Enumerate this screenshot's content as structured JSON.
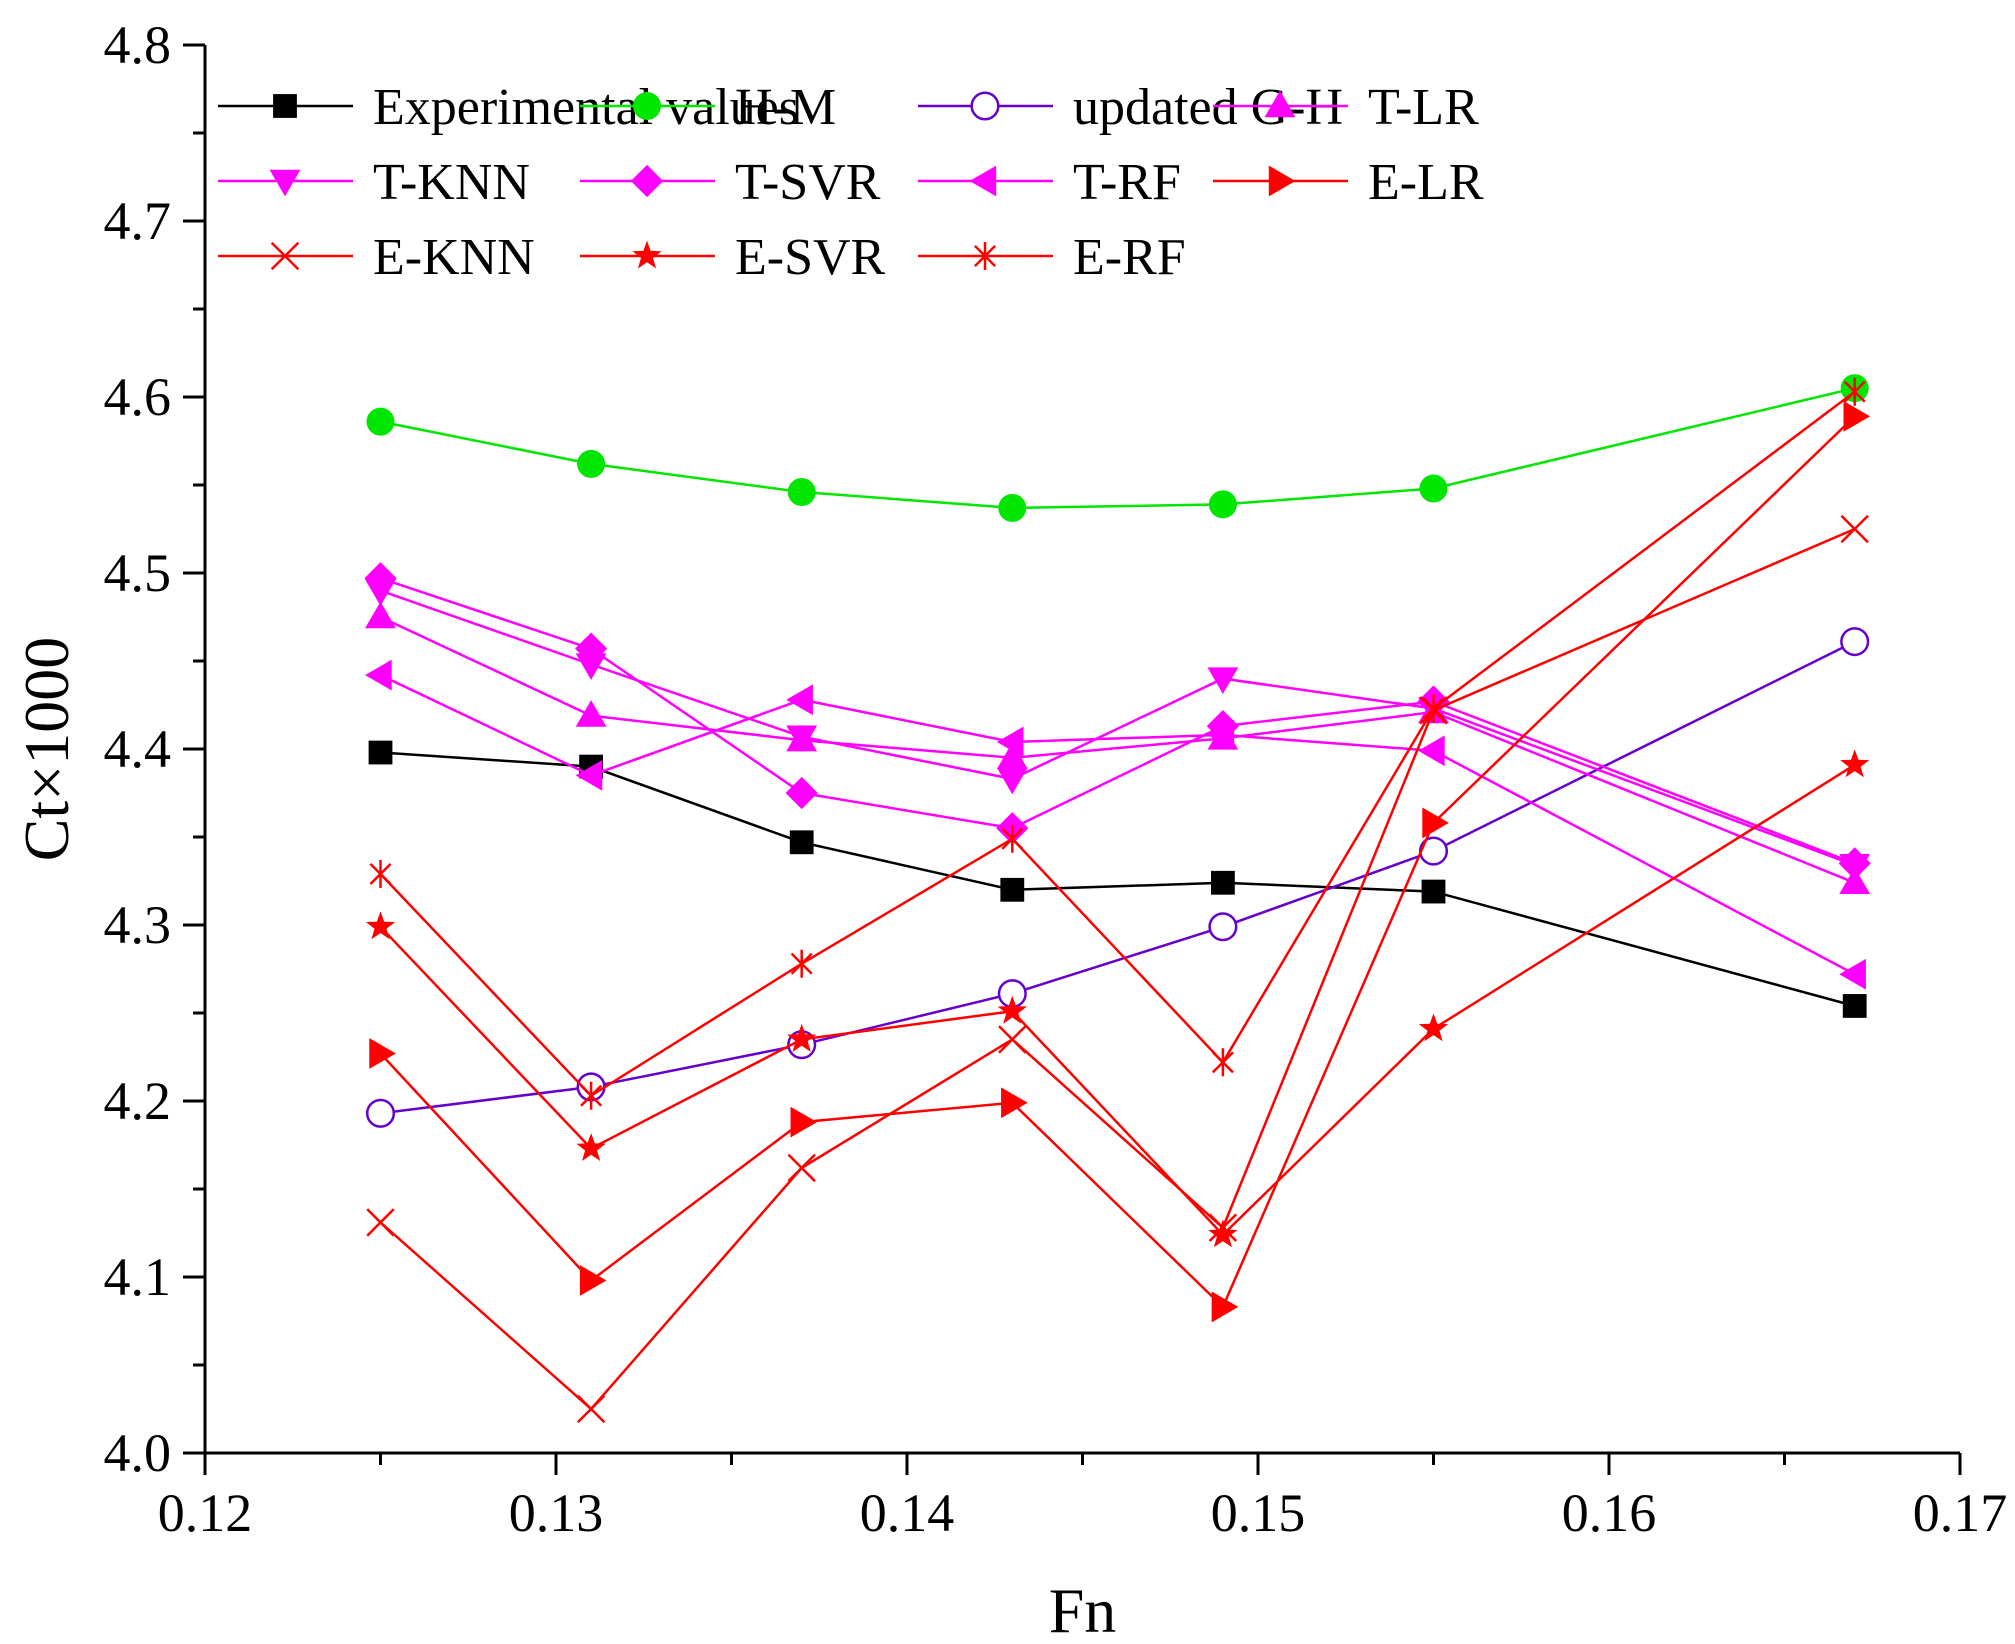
{
  "chart_data": {
    "type": "line",
    "title": "",
    "xlabel": "Fn",
    "ylabel": "Ct×1000",
    "xlim": [
      0.12,
      0.17
    ],
    "ylim": [
      4.0,
      4.8
    ],
    "xticks": [
      0.12,
      0.13,
      0.14,
      0.15,
      0.16,
      0.17
    ],
    "xtick_labels": [
      "0.12",
      "0.13",
      "0.14",
      "0.15",
      "0.16",
      "0.17"
    ],
    "yticks": [
      4.0,
      4.1,
      4.2,
      4.3,
      4.4,
      4.5,
      4.6,
      4.7,
      4.8
    ],
    "ytick_labels": [
      "4.0",
      "4.1",
      "4.2",
      "4.3",
      "4.4",
      "4.5",
      "4.6",
      "4.7",
      "4.8"
    ],
    "grid": false,
    "legend_position": "top",
    "x": [
      0.125,
      0.131,
      0.137,
      0.143,
      0.149,
      0.155,
      0.167
    ],
    "series": [
      {
        "name": "Experimental values",
        "color": "#000000",
        "marker": "square-filled",
        "values": [
          4.398,
          4.39,
          4.347,
          4.32,
          4.324,
          4.319,
          4.254
        ]
      },
      {
        "name": "H-M",
        "color": "#00e600",
        "marker": "circle-filled",
        "values": [
          4.586,
          4.562,
          4.546,
          4.537,
          4.539,
          4.548,
          4.605
        ]
      },
      {
        "name": "updated G-H",
        "color": "#6600cc",
        "marker": "circle-open",
        "values": [
          4.193,
          4.208,
          4.232,
          4.261,
          4.299,
          4.342,
          4.461
        ]
      },
      {
        "name": "T-LR",
        "color": "#ff00ff",
        "marker": "triangle-up",
        "values": [
          4.475,
          4.419,
          4.405,
          4.395,
          4.406,
          4.421,
          4.324
        ]
      },
      {
        "name": "T-KNN",
        "color": "#ff00ff",
        "marker": "triangle-down",
        "values": [
          4.49,
          4.448,
          4.407,
          4.383,
          4.44,
          4.423,
          4.334
        ]
      },
      {
        "name": "T-SVR",
        "color": "#ff00ff",
        "marker": "diamond",
        "values": [
          4.497,
          4.457,
          4.375,
          4.355,
          4.413,
          4.427,
          4.335
        ]
      },
      {
        "name": "T-RF",
        "color": "#ff00ff",
        "marker": "triangle-left",
        "values": [
          4.442,
          4.385,
          4.428,
          4.404,
          4.408,
          4.399,
          4.272
        ]
      },
      {
        "name": "E-LR",
        "color": "#ff0000",
        "marker": "triangle-right",
        "values": [
          4.227,
          4.098,
          4.188,
          4.199,
          4.083,
          4.358,
          4.589
        ]
      },
      {
        "name": "E-KNN",
        "color": "#ff0000",
        "marker": "x",
        "values": [
          4.131,
          4.025,
          4.162,
          4.235,
          4.128,
          4.422,
          4.525
        ]
      },
      {
        "name": "E-SVR",
        "color": "#ff0000",
        "marker": "star",
        "values": [
          4.299,
          4.173,
          4.235,
          4.251,
          4.124,
          4.241,
          4.391
        ]
      },
      {
        "name": "E-RF",
        "color": "#ff0000",
        "marker": "asterisk",
        "values": [
          4.329,
          4.203,
          4.278,
          4.349,
          4.222,
          4.423,
          4.603
        ]
      }
    ]
  }
}
